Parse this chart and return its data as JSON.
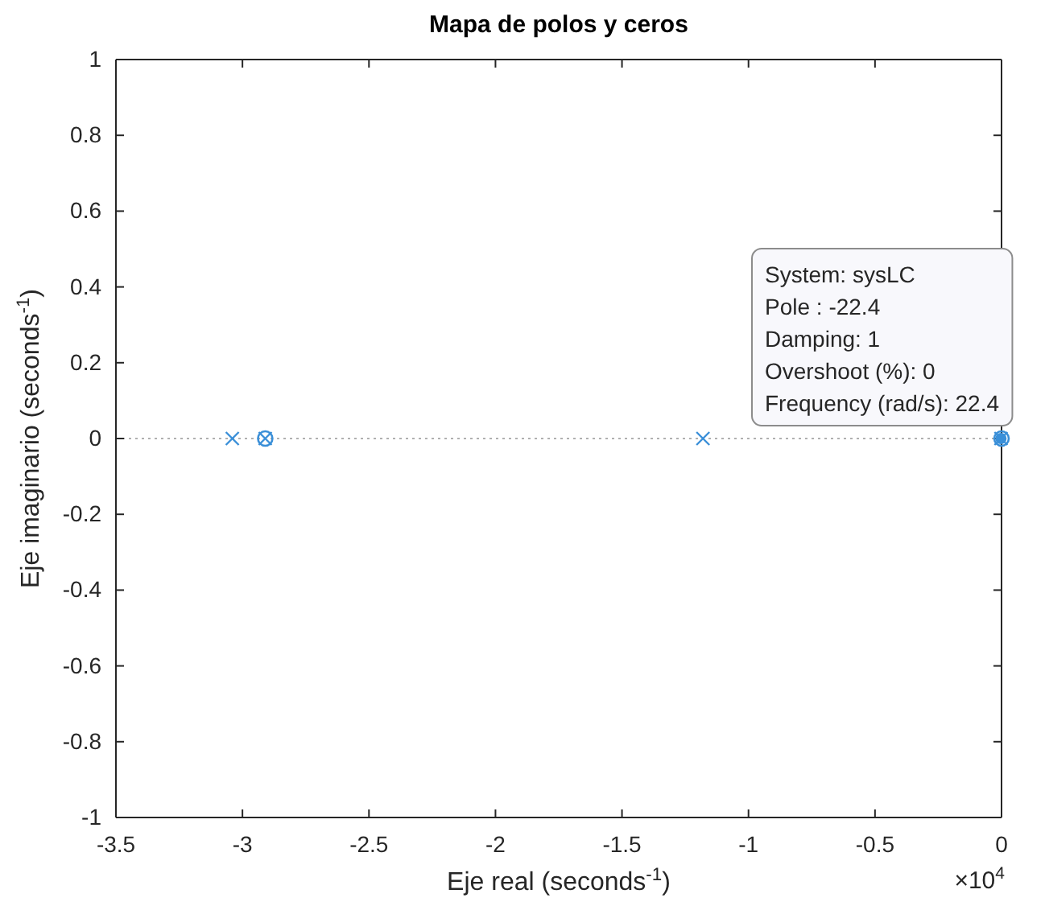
{
  "chart_data": {
    "type": "scatter",
    "title": "Mapa de polos y ceros",
    "xlabel": "Eje real (seconds$^{-1}$)",
    "ylabel": "Eje imaginario (seconds$^{-1}$)",
    "xlim": [
      -3.5,
      0
    ],
    "xticks": [
      -3.5,
      -3,
      -2.5,
      -2,
      -1.5,
      -1,
      -0.5,
      0
    ],
    "ylim": [
      -1,
      1
    ],
    "yticks": [
      -1,
      -0.8,
      -0.6,
      -0.4,
      -0.2,
      0,
      0.2,
      0.4,
      0.6,
      0.8,
      1
    ],
    "grid": false,
    "series": [
      {
        "color": "#3a8fd8",
        "marker": "cross",
        "x": [
          -3.04,
          -2.91,
          -1.18,
          -0.00224
        ],
        "values": [
          0,
          0,
          0,
          0
        ]
      },
      {
        "color": "#3a8fd8",
        "marker": "circle",
        "x": [
          -2.91,
          0
        ],
        "values": [
          0,
          0
        ]
      }
    ],
    "ref_lines": [
      {
        "axis": "y",
        "value": 0,
        "color": "#b0b0b0",
        "line_style": "dotted"
      }
    ],
    "annotations": [
      {
        "text": "×10$^{4}$"
      },
      {
        "text": "System: sysLC\nPole : -22.4\nDamping: 1\nOvershoot (%): 0\nFrequency (rad/s): 22.4",
        "x": -0.00224,
        "y": 0
      }
    ]
  }
}
